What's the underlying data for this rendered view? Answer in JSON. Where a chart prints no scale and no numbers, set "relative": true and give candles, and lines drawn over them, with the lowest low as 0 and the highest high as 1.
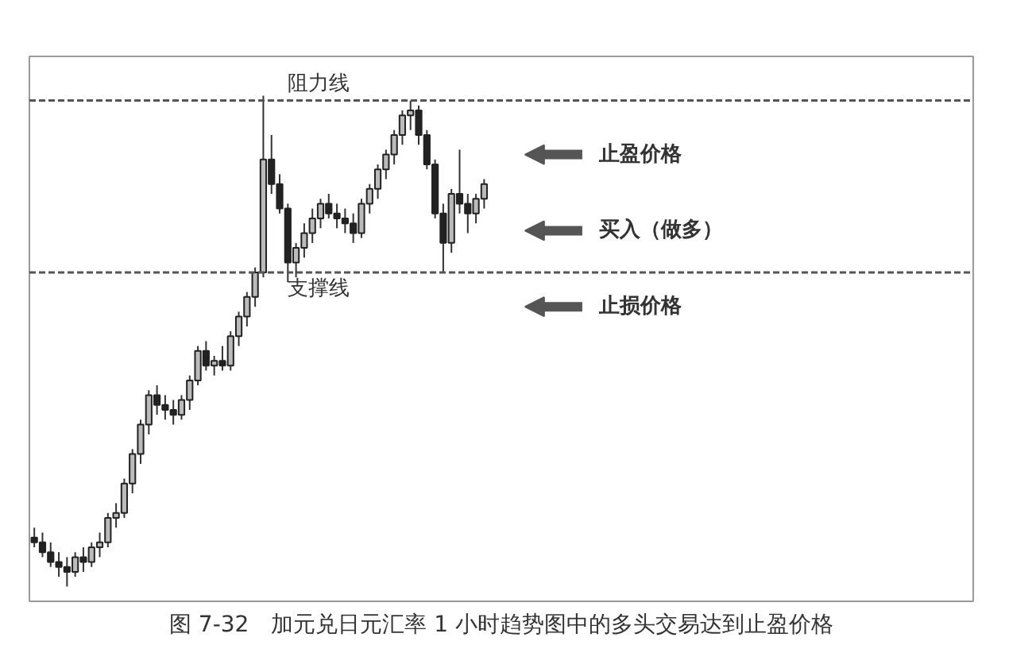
{
  "chart_data": {
    "type": "candlestick",
    "relative": true,
    "title": "图 7-32　加元兑日元汇率 1 小时趋势图中的多头交易达到止盈价格",
    "tick_labels": false,
    "grid": false,
    "categories": [
      null,
      null,
      null,
      null,
      null,
      null,
      null,
      null,
      null,
      null,
      null,
      null,
      null,
      null,
      null,
      null,
      null,
      null,
      null,
      null,
      null,
      null,
      null,
      null,
      null,
      null,
      null,
      null,
      null,
      null,
      null,
      null,
      null,
      null,
      null,
      null,
      null,
      null,
      null,
      null,
      null,
      null,
      null,
      null,
      null,
      null,
      null,
      null,
      null,
      null,
      null,
      null,
      null,
      null,
      null,
      null
    ],
    "ohlc": [
      [
        0.1,
        0.12,
        0.08,
        0.09
      ],
      [
        0.09,
        0.11,
        0.06,
        0.07
      ],
      [
        0.07,
        0.09,
        0.04,
        0.05
      ],
      [
        0.05,
        0.07,
        0.02,
        0.04
      ],
      [
        0.04,
        0.06,
        0.0,
        0.03
      ],
      [
        0.03,
        0.07,
        0.02,
        0.06
      ],
      [
        0.06,
        0.08,
        0.03,
        0.05
      ],
      [
        0.05,
        0.09,
        0.04,
        0.08
      ],
      [
        0.08,
        0.11,
        0.06,
        0.09
      ],
      [
        0.09,
        0.15,
        0.08,
        0.14
      ],
      [
        0.14,
        0.17,
        0.12,
        0.15
      ],
      [
        0.15,
        0.22,
        0.14,
        0.21
      ],
      [
        0.21,
        0.28,
        0.19,
        0.27
      ],
      [
        0.27,
        0.34,
        0.25,
        0.33
      ],
      [
        0.33,
        0.4,
        0.31,
        0.39
      ],
      [
        0.39,
        0.41,
        0.35,
        0.37
      ],
      [
        0.37,
        0.39,
        0.34,
        0.36
      ],
      [
        0.36,
        0.38,
        0.33,
        0.35
      ],
      [
        0.35,
        0.39,
        0.34,
        0.38
      ],
      [
        0.38,
        0.43,
        0.36,
        0.42
      ],
      [
        0.42,
        0.49,
        0.41,
        0.48
      ],
      [
        0.48,
        0.5,
        0.44,
        0.45
      ],
      [
        0.45,
        0.47,
        0.43,
        0.46
      ],
      [
        0.46,
        0.49,
        0.44,
        0.45
      ],
      [
        0.45,
        0.52,
        0.44,
        0.51
      ],
      [
        0.51,
        0.56,
        0.49,
        0.55
      ],
      [
        0.55,
        0.6,
        0.53,
        0.59
      ],
      [
        0.59,
        0.65,
        0.57,
        0.64
      ],
      [
        0.64,
        1.0,
        0.63,
        0.87
      ],
      [
        0.87,
        0.92,
        0.8,
        0.82
      ],
      [
        0.82,
        0.84,
        0.76,
        0.77
      ],
      [
        0.77,
        0.78,
        0.62,
        0.66
      ],
      [
        0.66,
        0.7,
        0.63,
        0.69
      ],
      [
        0.69,
        0.74,
        0.67,
        0.72
      ],
      [
        0.72,
        0.77,
        0.7,
        0.75
      ],
      [
        0.75,
        0.79,
        0.73,
        0.78
      ],
      [
        0.78,
        0.8,
        0.75,
        0.76
      ],
      [
        0.76,
        0.78,
        0.73,
        0.75
      ],
      [
        0.75,
        0.77,
        0.72,
        0.74
      ],
      [
        0.74,
        0.76,
        0.7,
        0.72
      ],
      [
        0.72,
        0.79,
        0.71,
        0.78
      ],
      [
        0.78,
        0.82,
        0.76,
        0.81
      ],
      [
        0.81,
        0.86,
        0.79,
        0.85
      ],
      [
        0.85,
        0.89,
        0.83,
        0.88
      ],
      [
        0.88,
        0.93,
        0.86,
        0.92
      ],
      [
        0.92,
        0.97,
        0.9,
        0.96
      ],
      [
        0.96,
        0.99,
        0.93,
        0.97
      ],
      [
        0.97,
        0.98,
        0.9,
        0.92
      ],
      [
        0.92,
        0.93,
        0.85,
        0.86
      ],
      [
        0.86,
        0.87,
        0.75,
        0.76
      ],
      [
        0.76,
        0.78,
        0.64,
        0.7
      ],
      [
        0.7,
        0.81,
        0.68,
        0.8
      ],
      [
        0.8,
        0.89,
        0.76,
        0.78
      ],
      [
        0.78,
        0.8,
        0.72,
        0.76
      ],
      [
        0.76,
        0.8,
        0.74,
        0.79
      ],
      [
        0.79,
        0.83,
        0.77,
        0.82
      ]
    ],
    "ref_lines": [
      {
        "axis": "y",
        "value": 0.99,
        "label": "阻力线",
        "color": "#555555",
        "line_style": "dashed"
      },
      {
        "axis": "y",
        "value": 0.64,
        "label": "支撑线",
        "color": "#555555",
        "line_style": "dashed"
      }
    ],
    "annotations": [
      "止盈价格",
      "买入（做多）",
      "止损价格"
    ]
  }
}
